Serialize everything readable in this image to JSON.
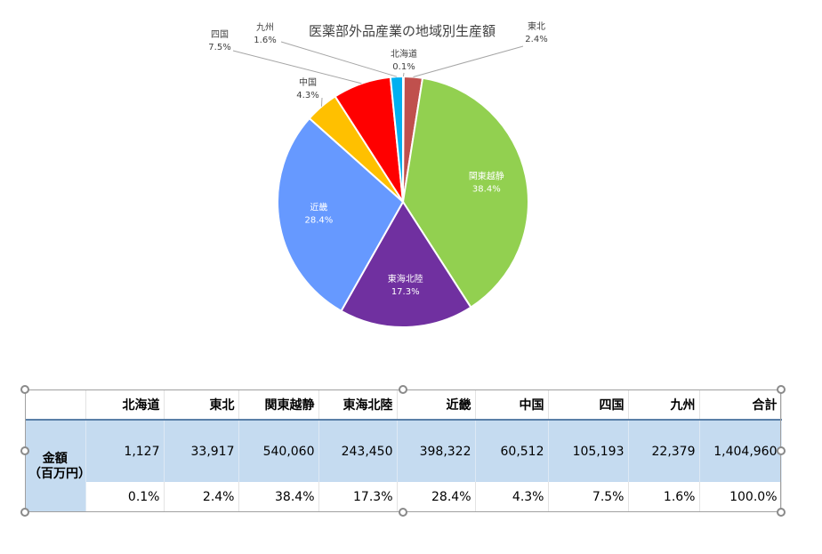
{
  "chart_data": {
    "type": "pie",
    "title": "医薬部外品産業の地域別生産額",
    "categories": [
      "北海道",
      "東北",
      "関東越静",
      "東海北陸",
      "近畿",
      "中国",
      "四国",
      "九州"
    ],
    "values": [
      0.1,
      2.4,
      38.4,
      17.3,
      28.4,
      4.3,
      7.5,
      1.6
    ],
    "value_labels": [
      "0.1%",
      "2.4%",
      "38.4%",
      "17.3%",
      "28.4%",
      "4.3%",
      "7.5%",
      "1.6%"
    ],
    "colors": [
      "#4a7ebb",
      "#c0504d",
      "#92d050",
      "#7030a0",
      "#6699ff",
      "#ffc000",
      "#ff0000",
      "#00b0f0"
    ],
    "start_angle_deg": 0,
    "direction": "clockwise"
  },
  "table": {
    "headers": [
      "",
      "北海道",
      "東北",
      "関東越静",
      "東海北陸",
      "近畿",
      "中国",
      "四国",
      "九州",
      "合計"
    ],
    "row_label_line1": "金額",
    "row_label_line2": "（百万円）",
    "amounts": [
      "1,127",
      "33,917",
      "540,060",
      "243,450",
      "398,322",
      "60,512",
      "105,193",
      "22,379",
      "1,404,960"
    ],
    "percents": [
      "0.1%",
      "2.4%",
      "38.4%",
      "17.3%",
      "28.4%",
      "4.3%",
      "7.5%",
      "1.6%",
      "100.0%"
    ]
  }
}
